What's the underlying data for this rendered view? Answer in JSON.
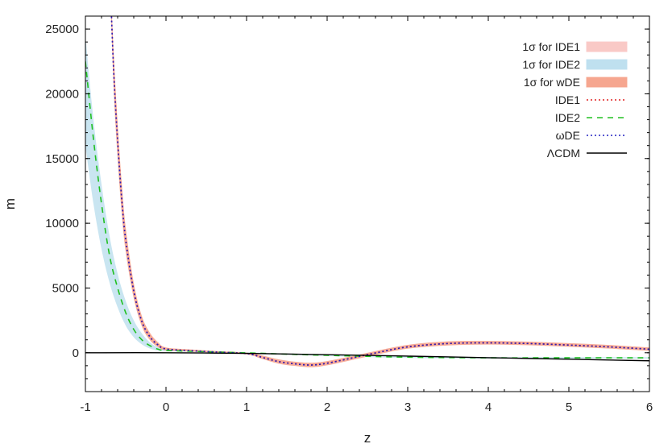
{
  "chart_data": {
    "type": "line",
    "title": "",
    "xlabel": "z",
    "ylabel": "m",
    "xlim": [
      -1,
      6
    ],
    "ylim": [
      -3000,
      26000
    ],
    "xticks": [
      -1,
      0,
      1,
      2,
      3,
      4,
      5,
      6
    ],
    "yticks": [
      0,
      5000,
      10000,
      15000,
      20000,
      25000
    ],
    "grid": false,
    "legend_position": "top-right",
    "series": [
      {
        "name": "1σ for IDE1",
        "kind": "band",
        "color": "#f9c9c6",
        "x": [
          -0.7,
          -0.65,
          -0.6,
          -0.55,
          -0.5,
          -0.4,
          -0.3,
          -0.2,
          -0.1,
          0,
          0.3,
          0.6,
          1.0,
          1.2,
          1.4,
          1.6,
          1.8,
          2.0,
          2.3,
          2.6,
          3.0,
          3.5,
          4.0,
          4.5,
          5.0,
          5.5,
          6.0
        ],
        "lower": [
          30000,
          21000,
          15500,
          11000,
          8000,
          4300,
          2100,
          1000,
          450,
          200,
          100,
          20,
          -120,
          -480,
          -830,
          -1000,
          -1100,
          -950,
          -550,
          -150,
          330,
          580,
          650,
          600,
          480,
          340,
          170
        ],
        "upper": [
          30000,
          23000,
          17500,
          13000,
          9500,
          5300,
          2800,
          1500,
          800,
          400,
          250,
          130,
          0,
          -230,
          -520,
          -700,
          -780,
          -650,
          -280,
          120,
          600,
          870,
          900,
          850,
          730,
          590,
          400
        ]
      },
      {
        "name": "1σ for IDE2",
        "kind": "band",
        "color": "#bfe0ef",
        "x": [
          -1.0,
          -0.9,
          -0.8,
          -0.7,
          -0.6,
          -0.5,
          -0.4,
          -0.3,
          -0.2,
          -0.1,
          0,
          0.5,
          1.0,
          2.0,
          3.0,
          4.0,
          5.0,
          6.0
        ],
        "lower": [
          16000,
          11500,
          8000,
          5400,
          3500,
          2100,
          1200,
          650,
          330,
          170,
          120,
          40,
          -50,
          -250,
          -400,
          -450,
          -450,
          -450
        ],
        "upper": [
          24500,
          18000,
          13000,
          9000,
          6100,
          4000,
          2500,
          1500,
          800,
          430,
          250,
          120,
          30,
          -150,
          -290,
          -340,
          -340,
          -340
        ]
      },
      {
        "name": "1σ for wDE",
        "kind": "band",
        "color": "#f6a68f",
        "x": [
          -0.7,
          -0.65,
          -0.6,
          -0.55,
          -0.5,
          -0.4,
          -0.3,
          -0.2,
          -0.1,
          0,
          0.3,
          0.6,
          1.0,
          1.2,
          1.4,
          1.6,
          1.8,
          2.0,
          2.3,
          2.6,
          3.0,
          3.5,
          4.0,
          4.5,
          5.0,
          5.5,
          6.0
        ],
        "lower": [
          30000,
          20500,
          15000,
          10800,
          7800,
          4200,
          2050,
          980,
          440,
          190,
          90,
          10,
          -130,
          -490,
          -850,
          -1020,
          -1120,
          -970,
          -570,
          -170,
          310,
          560,
          630,
          580,
          460,
          320,
          150
        ],
        "upper": [
          30000,
          23200,
          17700,
          13200,
          9700,
          5400,
          2850,
          1550,
          820,
          410,
          260,
          140,
          10,
          -220,
          -510,
          -690,
          -770,
          -640,
          -270,
          130,
          610,
          880,
          910,
          860,
          740,
          600,
          410
        ]
      },
      {
        "name": "IDE1",
        "kind": "line",
        "style": "dotted",
        "color": "#e02020",
        "x": [
          -0.7,
          -0.65,
          -0.6,
          -0.55,
          -0.5,
          -0.4,
          -0.3,
          -0.2,
          -0.1,
          0,
          0.3,
          0.6,
          1.0,
          1.2,
          1.4,
          1.6,
          1.8,
          2.0,
          2.3,
          2.6,
          3.0,
          3.5,
          4.0,
          4.5,
          5.0,
          5.5,
          6.0
        ],
        "y": [
          30000,
          22000,
          16500,
          12000,
          8750,
          4800,
          2450,
          1250,
          620,
          300,
          170,
          70,
          -60,
          -360,
          -680,
          -850,
          -940,
          -800,
          -410,
          -10,
          460,
          720,
          770,
          720,
          600,
          460,
          280
        ]
      },
      {
        "name": "IDE2",
        "kind": "line",
        "style": "dashed",
        "color": "#20c020",
        "x": [
          -1.0,
          -0.9,
          -0.8,
          -0.7,
          -0.6,
          -0.5,
          -0.4,
          -0.3,
          -0.2,
          -0.1,
          0,
          0.5,
          1.0,
          2.0,
          3.0,
          4.0,
          5.0,
          6.0
        ],
        "y": [
          22500,
          16500,
          11500,
          7500,
          5000,
          3100,
          1800,
          1000,
          550,
          280,
          180,
          80,
          -10,
          -200,
          -340,
          -390,
          -390,
          -390
        ]
      },
      {
        "name": "ωDE",
        "kind": "line",
        "style": "dotted",
        "color": "#2020c0",
        "x": [
          -0.7,
          -0.65,
          -0.6,
          -0.55,
          -0.5,
          -0.4,
          -0.3,
          -0.2,
          -0.1,
          0,
          0.3,
          0.6,
          1.0,
          1.2,
          1.4,
          1.6,
          1.8,
          2.0,
          2.3,
          2.6,
          3.0,
          3.5,
          4.0,
          4.5,
          5.0,
          5.5,
          6.0
        ],
        "y": [
          30000,
          21800,
          16300,
          11900,
          8700,
          4750,
          2420,
          1230,
          610,
          290,
          160,
          60,
          -70,
          -370,
          -690,
          -860,
          -950,
          -810,
          -420,
          -20,
          450,
          710,
          760,
          710,
          590,
          450,
          270
        ]
      },
      {
        "name": "ΛCDM",
        "kind": "line",
        "style": "solid",
        "color": "#000000",
        "x": [
          -1.0,
          0,
          1,
          2,
          3,
          4,
          5,
          6
        ],
        "y": [
          0,
          0,
          -50,
          -150,
          -260,
          -380,
          -500,
          -620
        ]
      }
    ]
  }
}
